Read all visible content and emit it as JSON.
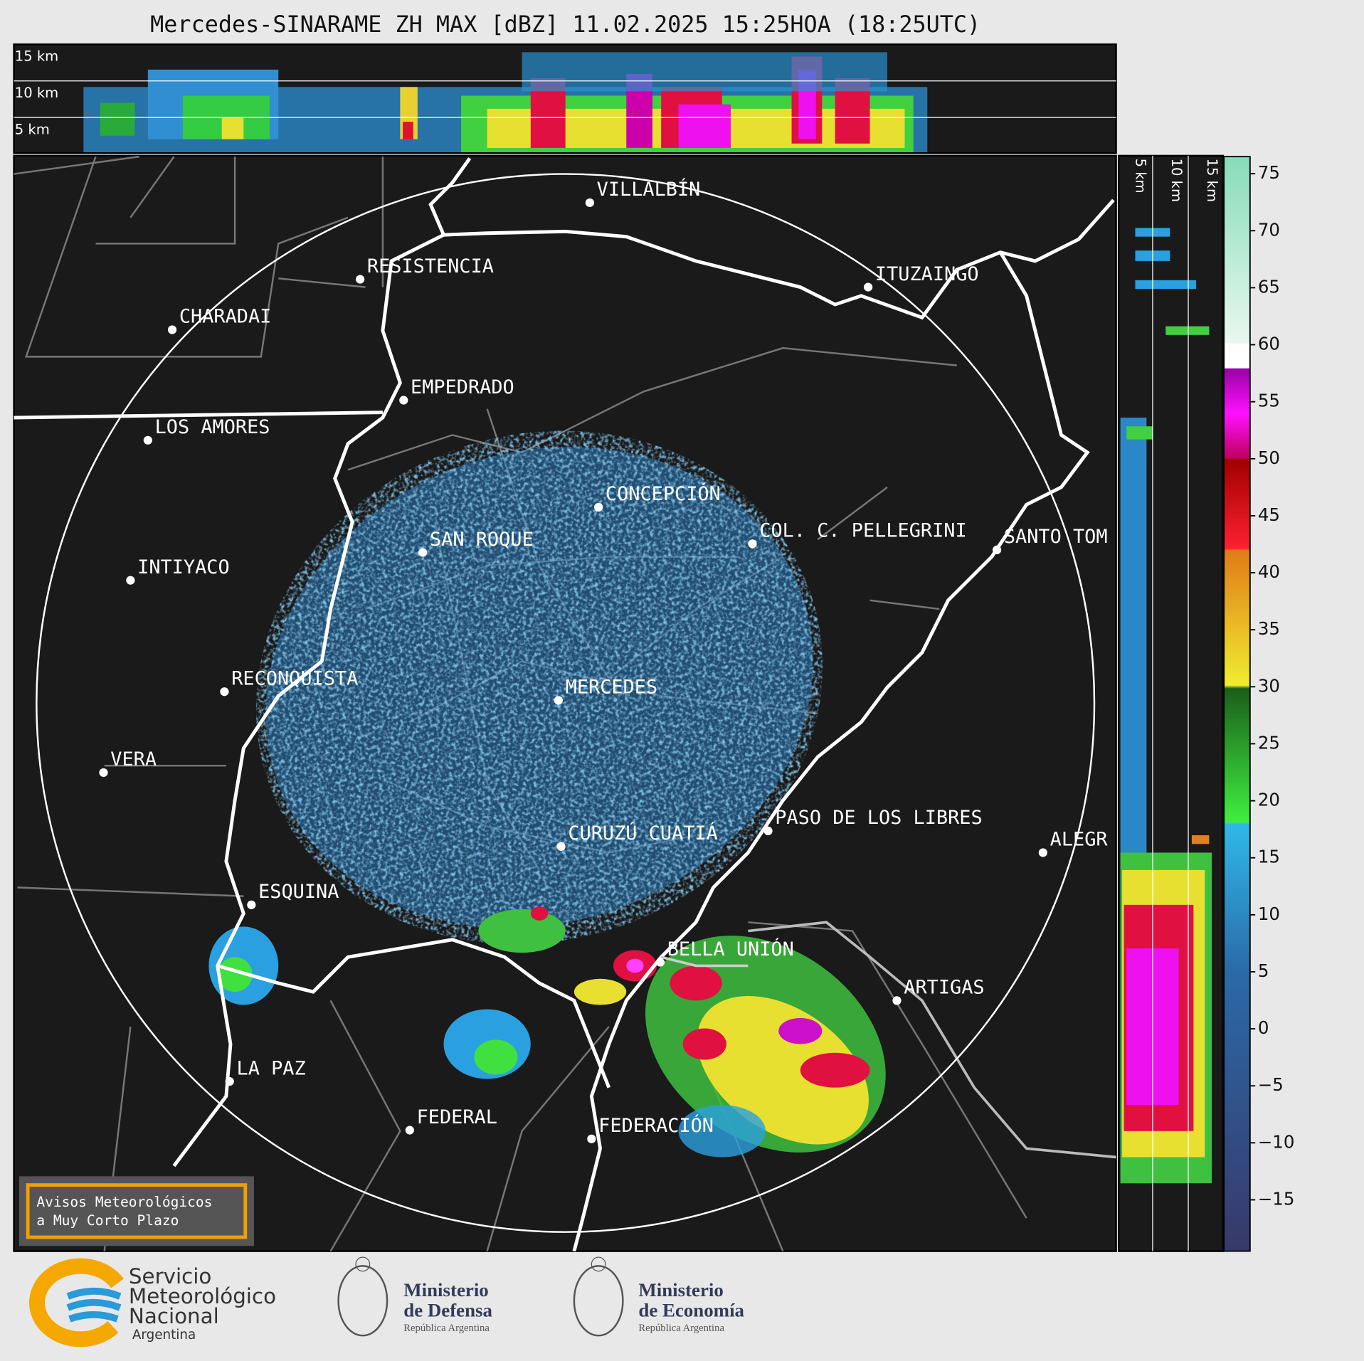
{
  "title": "Mercedes-SINARAME ZH MAX [dBZ] 11.02.2025 15:25HOA (18:25UTC)",
  "height_labels_top": [
    "15 km",
    "10 km",
    "5 km"
  ],
  "height_labels_side": [
    "5 km",
    "10 km",
    "15 km"
  ],
  "cities": [
    "VILLALBÍN",
    "RESISTENCIA",
    "CHARADAI",
    "EMPEDRADO",
    "LOS AMORES",
    "ITUZAINGÓ",
    "CONCEPCIÓN",
    "SAN ROQUE",
    "COL. C. PELLEGRINI",
    "SANTO TOM",
    "INTIYACO",
    "RECONQUISTA",
    "MERCEDES",
    "VERA",
    "PASO DE LOS LIBRES",
    "CURUZÚ CUATIÁ",
    "ALEGR",
    "ESQUINA",
    "BELLA UNIÓN",
    "ARTIGAS",
    "LA PAZ",
    "FEDERAL",
    "FEDERACIÓN"
  ],
  "colorbar": {
    "range": [
      -19.5,
      76.5
    ],
    "ticks": [
      75,
      70,
      65,
      60,
      55,
      50,
      45,
      40,
      35,
      30,
      25,
      20,
      15,
      10,
      5,
      0,
      {
        "value": -5,
        "label": "−5"
      },
      {
        "value": -10,
        "label": "−10"
      },
      {
        "value": -15,
        "label": "−15"
      }
    ]
  },
  "notice": [
    "Avisos Meteorológicos",
    "a Muy Corto Plazo"
  ],
  "logos": {
    "smn": [
      "Servicio",
      "Meteorológico",
      "Nacional",
      "Argentina"
    ],
    "defensa": [
      "Ministerio",
      "de Defensa",
      "República Argentina"
    ],
    "economia": [
      "Ministerio",
      "de Economía",
      "República Argentina"
    ]
  }
}
